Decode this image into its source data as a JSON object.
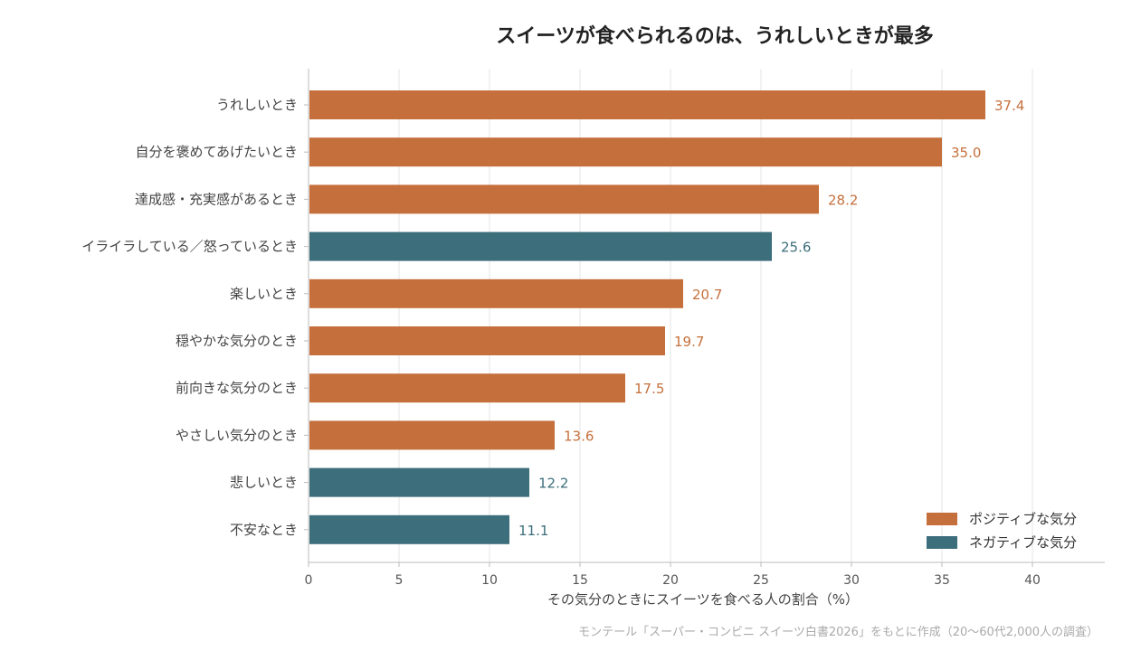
{
  "chart_data": {
    "type": "bar",
    "orientation": "horizontal",
    "title": "スイーツが食べられるのは、うれしいときが最多",
    "xlabel": "その気分のときにスイーツを食べる人の割合（%）",
    "xlim": [
      0,
      44
    ],
    "xticks": [
      0,
      5,
      10,
      15,
      20,
      25,
      30,
      35,
      40
    ],
    "grid": "vertical",
    "legend_position": "bottom-right",
    "legend": [
      {
        "key": "positive",
        "label": "ポジティブな気分",
        "color": "#C5703C"
      },
      {
        "key": "negative",
        "label": "ネガティブな気分",
        "color": "#3D6E7B"
      }
    ],
    "categories": [
      "うれしいとき",
      "自分を褒めてあげたいとき",
      "達成感・充実感があるとき",
      "イライラしている／怒っているとき",
      "楽しいとき",
      "穏やかな気分のとき",
      "前向きな気分のとき",
      "やさしい気分のとき",
      "悲しいとき",
      "不安なとき"
    ],
    "values": [
      37.4,
      35.0,
      28.2,
      25.6,
      20.7,
      19.7,
      17.5,
      13.6,
      12.2,
      11.1
    ],
    "value_labels": [
      "37.4",
      "35.0",
      "28.2",
      "25.6",
      "20.7",
      "19.7",
      "17.5",
      "13.6",
      "12.2",
      "11.1"
    ],
    "groups": [
      "positive",
      "positive",
      "positive",
      "negative",
      "positive",
      "positive",
      "positive",
      "positive",
      "negative",
      "negative"
    ],
    "source": "モンテール「スーパー・コンビニ スイーツ白書2026」をもとに作成（20〜60代2,000人の調査）"
  }
}
